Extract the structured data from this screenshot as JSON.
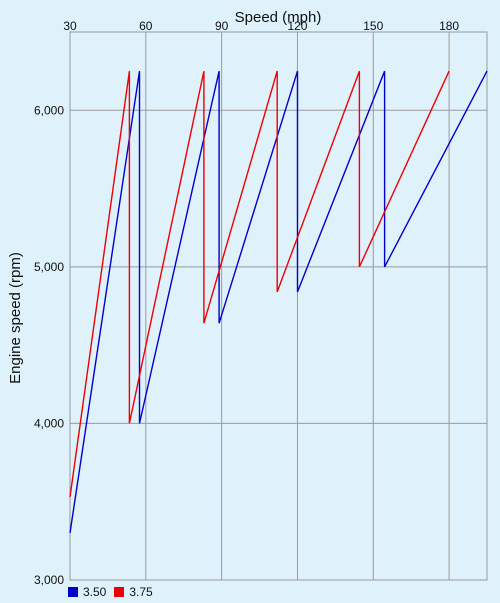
{
  "chart_data": {
    "type": "line",
    "xlabel": "Speed (mph)",
    "ylabel": "Engine speed (rpm)",
    "xlim": [
      30,
      195
    ],
    "ylim": [
      3000,
      6500
    ],
    "xticks": [
      30,
      60,
      90,
      120,
      150,
      180
    ],
    "xtick_labels": [
      "30",
      "60",
      "90",
      "120",
      "150",
      "180"
    ],
    "yticks": [
      3000,
      4000,
      5000,
      6000
    ],
    "ytick_labels": [
      "3,000",
      "4,000",
      "5,000",
      "6,000"
    ],
    "grid": true,
    "x_axis_position": "top",
    "legend_position": "bottom-left",
    "series": [
      {
        "name": "3.50",
        "color": "#0000cc",
        "x": [
          30,
          57.5,
          57.5,
          89,
          89,
          120,
          120,
          154.5,
          154.5,
          195
        ],
        "y": [
          3300,
          6250,
          4000,
          6250,
          4640,
          6250,
          4840,
          6250,
          5000,
          6250
        ]
      },
      {
        "name": "3.75",
        "color": "#ee0000",
        "x": [
          30,
          53.5,
          53.5,
          83,
          83,
          112,
          112,
          144.5,
          144.5,
          180
        ],
        "y": [
          3530,
          6250,
          4000,
          6250,
          4640,
          6250,
          4840,
          6250,
          5000,
          6250
        ]
      }
    ]
  },
  "legend": {
    "items": [
      {
        "label": "3.50",
        "color": "#0000cc"
      },
      {
        "label": "3.75",
        "color": "#ee0000"
      }
    ]
  }
}
